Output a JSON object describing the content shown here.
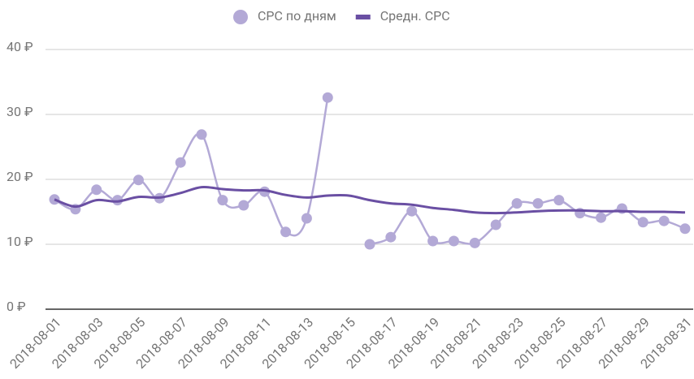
{
  "chart_data": {
    "type": "line",
    "categories": [
      "2018-08-01",
      null,
      "2018-08-03",
      null,
      "2018-08-05",
      null,
      "2018-08-07",
      null,
      "2018-08-09",
      null,
      "2018-08-11",
      null,
      "2018-08-13",
      null,
      "2018-08-15",
      null,
      "2018-08-17",
      null,
      "2018-08-19",
      null,
      "2018-08-21",
      null,
      "2018-08-23",
      null,
      "2018-08-25",
      null,
      "2018-08-27",
      null,
      "2018-08-29",
      null,
      "2018-08-31"
    ],
    "series": [
      {
        "name": "CPC по дням",
        "color": "#b3a9d6",
        "marker": "circle",
        "values": [
          16.9,
          15.4,
          18.4,
          16.8,
          19.9,
          17.1,
          22.6,
          26.9,
          16.8,
          16.0,
          18.1,
          11.9,
          14.0,
          32.6,
          null,
          10.0,
          11.1,
          15.1,
          10.5,
          10.5,
          10.2,
          13.0,
          16.3,
          16.3,
          16.8,
          14.8,
          14.1,
          15.5,
          13.4,
          13.6,
          12.4
        ]
      },
      {
        "name": "Средн. CPC",
        "color": "#6a4fa3",
        "marker": "none",
        "values": [
          16.9,
          15.8,
          16.8,
          16.6,
          17.3,
          17.2,
          17.9,
          18.8,
          18.5,
          18.3,
          18.3,
          17.6,
          17.2,
          17.5,
          17.5,
          16.8,
          16.3,
          16.1,
          15.6,
          15.3,
          14.9,
          14.8,
          14.9,
          15.1,
          15.2,
          15.2,
          15.1,
          15.1,
          15.0,
          15.0,
          14.9
        ]
      }
    ],
    "ylim": [
      0,
      40
    ],
    "yticks": [
      {
        "value": 0,
        "label": "0 ₽"
      },
      {
        "value": 10,
        "label": "10 ₽"
      },
      {
        "value": 20,
        "label": "20 ₽"
      },
      {
        "value": 30,
        "label": "30 ₽"
      },
      {
        "value": 40,
        "label": "40 ₽"
      }
    ],
    "grid": true,
    "smooth": true,
    "legend": "top"
  }
}
